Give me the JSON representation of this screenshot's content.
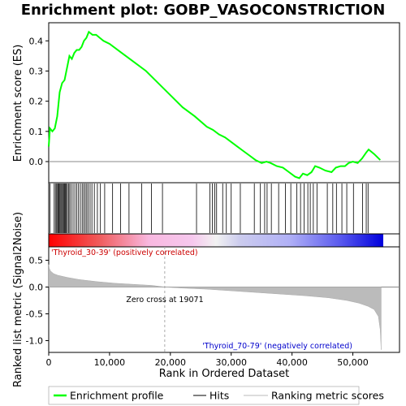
{
  "chart_data": {
    "type": "line",
    "title": "Enrichment plot: GOBP_VASOCONSTRICTION",
    "es_panel": {
      "ylabel": "Enrichment score (ES)",
      "yticks": [
        0.0,
        0.1,
        0.2,
        0.3,
        0.4
      ],
      "ytick_labels": [
        "0.0",
        "0.1",
        "0.2",
        "0.3",
        "0.4"
      ],
      "ylim": [
        -0.07,
        0.46
      ],
      "color": "#00ff00",
      "points": [
        [
          0,
          0.05
        ],
        [
          200,
          0.11
        ],
        [
          600,
          0.1
        ],
        [
          1000,
          0.11
        ],
        [
          1400,
          0.15
        ],
        [
          1800,
          0.23
        ],
        [
          2200,
          0.26
        ],
        [
          2600,
          0.27
        ],
        [
          3000,
          0.31
        ],
        [
          3400,
          0.35
        ],
        [
          3800,
          0.34
        ],
        [
          4200,
          0.36
        ],
        [
          4600,
          0.37
        ],
        [
          5000,
          0.37
        ],
        [
          5400,
          0.38
        ],
        [
          5800,
          0.4
        ],
        [
          6200,
          0.41
        ],
        [
          6600,
          0.43
        ],
        [
          7200,
          0.42
        ],
        [
          7800,
          0.42
        ],
        [
          8400,
          0.41
        ],
        [
          9000,
          0.4
        ],
        [
          10000,
          0.39
        ],
        [
          12000,
          0.36
        ],
        [
          14000,
          0.33
        ],
        [
          16000,
          0.3
        ],
        [
          18000,
          0.26
        ],
        [
          20000,
          0.22
        ],
        [
          22000,
          0.18
        ],
        [
          24000,
          0.15
        ],
        [
          26000,
          0.115
        ],
        [
          27000,
          0.105
        ],
        [
          28000,
          0.09
        ],
        [
          29000,
          0.08
        ],
        [
          30000,
          0.065
        ],
        [
          31000,
          0.05
        ],
        [
          32000,
          0.035
        ],
        [
          33000,
          0.02
        ],
        [
          34000,
          0.005
        ],
        [
          35000,
          -0.005
        ],
        [
          35800,
          0.0
        ],
        [
          36500,
          -0.005
        ],
        [
          37500,
          -0.015
        ],
        [
          38500,
          -0.02
        ],
        [
          39500,
          -0.035
        ],
        [
          40500,
          -0.05
        ],
        [
          41200,
          -0.055
        ],
        [
          41800,
          -0.04
        ],
        [
          42500,
          -0.045
        ],
        [
          43200,
          -0.035
        ],
        [
          43800,
          -0.015
        ],
        [
          44500,
          -0.02
        ],
        [
          45500,
          -0.03
        ],
        [
          46500,
          -0.035
        ],
        [
          47200,
          -0.02
        ],
        [
          48000,
          -0.015
        ],
        [
          48700,
          -0.015
        ],
        [
          49300,
          -0.005
        ],
        [
          50000,
          0.0
        ],
        [
          50800,
          -0.005
        ],
        [
          51500,
          0.01
        ],
        [
          52200,
          0.03
        ],
        [
          52600,
          0.04
        ],
        [
          53500,
          0.025
        ],
        [
          54500,
          0.005
        ]
      ]
    },
    "hits": [
      200,
      900,
      1100,
      1300,
      1450,
      1600,
      1700,
      1850,
      2000,
      2150,
      2300,
      2450,
      2600,
      2750,
      2900,
      3050,
      3250,
      3450,
      3700,
      4000,
      4300,
      4600,
      4900,
      5200,
      5500,
      5750,
      6000,
      6250,
      6500,
      6800,
      7100,
      7500,
      8000,
      8500,
      9200,
      10500,
      11800,
      13200,
      15300,
      16900,
      18700,
      24300,
      26500,
      26900,
      27300,
      27600,
      28600,
      29200,
      30000,
      31500,
      33800,
      34800,
      35500,
      35900,
      36600,
      37800,
      38900,
      39800,
      40800,
      41400,
      42000,
      42600,
      43000,
      43500,
      44100,
      45800,
      46700,
      47300,
      48200,
      49000,
      50100,
      51600,
      52200,
      52500
    ],
    "metric_panel": {
      "ylabel": "Ranked list metric (Signal2Noise)",
      "yticks": [
        0.5,
        0.0,
        -0.5,
        -1.0
      ],
      "ytick_labels": [
        "0.5",
        "0.0",
        "-0.5",
        "-1.0"
      ],
      "ylim": [
        -1.22,
        0.75
      ],
      "points": [
        [
          0,
          0.42
        ],
        [
          100,
          0.35
        ],
        [
          300,
          0.3
        ],
        [
          800,
          0.25
        ],
        [
          1500,
          0.22
        ],
        [
          3000,
          0.18
        ],
        [
          5000,
          0.14
        ],
        [
          8000,
          0.1
        ],
        [
          11000,
          0.07
        ],
        [
          14000,
          0.05
        ],
        [
          17000,
          0.03
        ],
        [
          19071,
          0.0
        ],
        [
          22000,
          -0.02
        ],
        [
          26000,
          -0.04
        ],
        [
          30000,
          -0.07
        ],
        [
          34000,
          -0.1
        ],
        [
          38000,
          -0.13
        ],
        [
          42000,
          -0.16
        ],
        [
          46000,
          -0.2
        ],
        [
          49000,
          -0.25
        ],
        [
          51000,
          -0.3
        ],
        [
          52500,
          -0.36
        ],
        [
          53500,
          -0.42
        ],
        [
          54200,
          -0.55
        ],
        [
          54500,
          -0.8
        ],
        [
          54650,
          -1.17
        ]
      ]
    },
    "zero_cross": 19071,
    "zero_cross_label": "Zero cross at 19071",
    "pos_label": "'Thyroid_30-39' (positively correlated)",
    "neg_label": "'Thyroid_70-79' (negatively correlated)",
    "xlabel": "Rank in Ordered Dataset",
    "xticks": [
      0,
      10000,
      20000,
      30000,
      40000,
      50000
    ],
    "xtick_labels": [
      "0",
      "10,000",
      "20,000",
      "30,000",
      "40,000",
      "50,000"
    ],
    "xlim": [
      0,
      55000
    ],
    "legend": {
      "entries": [
        {
          "label": "Enrichment profile",
          "color": "#00ff00"
        },
        {
          "label": "Hits",
          "color": "#000000"
        },
        {
          "label": "Ranking metric scores",
          "color": "#bbbbbb"
        }
      ],
      "placement": "bottom"
    }
  }
}
